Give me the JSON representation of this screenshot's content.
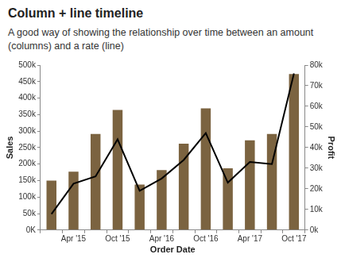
{
  "chart_data": {
    "type": "bar",
    "title": "Column + line timeline",
    "subtitle": "A good way of showing the relationship over time between an amount (columns) and a rate (line)",
    "x_label": "Order Date",
    "y_label": "Sales",
    "y2_label": "Profit",
    "categories": [
      null,
      "Apr '15",
      null,
      "Oct '15",
      null,
      "Apr '16",
      null,
      "Oct '16",
      null,
      "Apr '17",
      null,
      "Oct '17"
    ],
    "series": [
      {
        "type": "bar",
        "color": "#7b6340",
        "values": [
          150000,
          177000,
          291000,
          364000,
          138000,
          182000,
          262000,
          369000,
          187000,
          272000,
          291000,
          473000
        ]
      },
      {
        "type": "line",
        "color": "#000000",
        "axis": "y2",
        "values": [
          7800,
          22500,
          26000,
          44000,
          19000,
          25000,
          34000,
          47000,
          23000,
          33000,
          32000,
          76000
        ]
      }
    ],
    "ylim": [
      0,
      500000
    ],
    "yticks": [
      {
        "value": 0,
        "label": "0K"
      },
      {
        "value": 50000,
        "label": "50k"
      },
      {
        "value": 100000,
        "label": "100k"
      },
      {
        "value": 150000,
        "label": "150k"
      },
      {
        "value": 200000,
        "label": "200k"
      },
      {
        "value": 250000,
        "label": "250k"
      },
      {
        "value": 300000,
        "label": "300k"
      },
      {
        "value": 350000,
        "label": "350k"
      },
      {
        "value": 400000,
        "label": "400k"
      },
      {
        "value": 450000,
        "label": "450k"
      },
      {
        "value": 500000,
        "label": "500k"
      }
    ],
    "y2lim": [
      0,
      80000
    ],
    "y2ticks": [
      {
        "value": 0,
        "label": "0k"
      },
      {
        "value": 10000,
        "label": "10k"
      },
      {
        "value": 20000,
        "label": "20k"
      },
      {
        "value": 30000,
        "label": "30k"
      },
      {
        "value": 40000,
        "label": "40k"
      },
      {
        "value": 50000,
        "label": "50k"
      },
      {
        "value": 60000,
        "label": "60k"
      },
      {
        "value": 70000,
        "label": "70k"
      },
      {
        "value": 80000,
        "label": "80k"
      }
    ],
    "grid": false
  }
}
